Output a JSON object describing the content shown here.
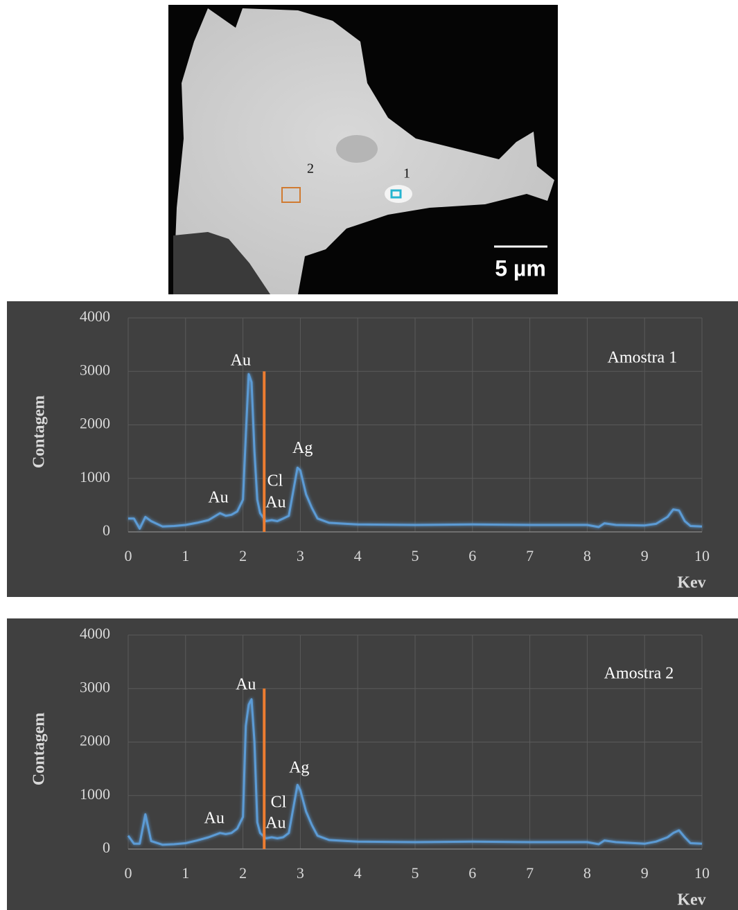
{
  "image": {
    "labels": [
      "2",
      "1"
    ],
    "scale_bar": "5 µm"
  },
  "chart_data": [
    {
      "type": "line",
      "color": "#5b9bd5",
      "x": [
        0,
        0.1,
        0.2,
        0.3,
        0.4,
        0.6,
        0.8,
        1.0,
        1.2,
        1.4,
        1.6,
        1.7,
        1.8,
        1.9,
        2.0,
        2.05,
        2.1,
        2.15,
        2.2,
        2.25,
        2.3,
        2.4,
        2.5,
        2.6,
        2.7,
        2.8,
        2.9,
        2.95,
        3.0,
        3.1,
        3.2,
        3.3,
        3.5,
        3.8,
        4,
        5,
        6,
        7,
        8,
        8.2,
        8.3,
        8.5,
        9,
        9.2,
        9.4,
        9.5,
        9.6,
        9.7,
        9.8,
        10
      ],
      "values": [
        250,
        250,
        60,
        280,
        200,
        100,
        110,
        130,
        170,
        220,
        350,
        300,
        320,
        380,
        600,
        1800,
        2950,
        2800,
        1500,
        600,
        350,
        200,
        220,
        200,
        250,
        300,
        900,
        1200,
        1150,
        700,
        450,
        250,
        170,
        150,
        140,
        130,
        140,
        130,
        130,
        90,
        160,
        130,
        120,
        150,
        280,
        420,
        400,
        200,
        110,
        100
      ],
      "xlim": [
        0,
        10
      ],
      "xticks": [
        0,
        1,
        2,
        3,
        4,
        5,
        6,
        7,
        8,
        9,
        10
      ],
      "ylim": [
        0,
        4000
      ],
      "yticks": [
        0,
        1000,
        2000,
        3000,
        4000
      ],
      "grid": true,
      "x_label": "Kev",
      "y_label": "Contagem",
      "vline": {
        "x": 2.37,
        "y": [
          0,
          3000
        ],
        "color": "#ed7d31"
      },
      "annotations": [
        {
          "text": "Au",
          "x": 1.96,
          "y": 3185
        },
        {
          "text": "Ag",
          "x": 3.04,
          "y": 1550
        },
        {
          "text": "Cl",
          "x": 2.56,
          "y": 930
        },
        {
          "text": "Au",
          "x": 2.57,
          "y": 530
        },
        {
          "text": "Au",
          "x": 1.57,
          "y": 620
        },
        {
          "text": "Amostra 1",
          "x": 8.96,
          "y": 3235
        }
      ]
    },
    {
      "type": "line",
      "color": "#5b9bd5",
      "x": [
        0,
        0.1,
        0.2,
        0.3,
        0.4,
        0.6,
        0.8,
        1.0,
        1.2,
        1.4,
        1.6,
        1.7,
        1.8,
        1.9,
        2.0,
        2.05,
        2.1,
        2.15,
        2.2,
        2.25,
        2.3,
        2.4,
        2.5,
        2.6,
        2.7,
        2.8,
        2.9,
        2.95,
        3.0,
        3.1,
        3.2,
        3.3,
        3.5,
        3.8,
        4,
        5,
        6,
        7,
        8,
        8.2,
        8.3,
        8.5,
        9,
        9.2,
        9.4,
        9.5,
        9.6,
        9.7,
        9.8,
        10
      ],
      "values": [
        250,
        100,
        100,
        650,
        150,
        80,
        90,
        110,
        160,
        220,
        300,
        280,
        300,
        380,
        600,
        2300,
        2700,
        2800,
        2000,
        500,
        300,
        200,
        220,
        200,
        220,
        300,
        900,
        1200,
        1100,
        700,
        450,
        250,
        170,
        150,
        140,
        130,
        140,
        130,
        130,
        90,
        160,
        130,
        100,
        140,
        220,
        300,
        350,
        220,
        110,
        100
      ],
      "xlim": [
        0,
        10
      ],
      "xticks": [
        0,
        1,
        2,
        3,
        4,
        5,
        6,
        7,
        8,
        9,
        10
      ],
      "ylim": [
        0,
        4000
      ],
      "yticks": [
        0,
        1000,
        2000,
        3000,
        4000
      ],
      "grid": true,
      "x_label": "Kev",
      "y_label": "Contagem",
      "vline": {
        "x": 2.37,
        "y": [
          0,
          3000
        ],
        "color": "#ed7d31"
      },
      "annotations": [
        {
          "text": "Au",
          "x": 2.05,
          "y": 3055
        },
        {
          "text": "Ag",
          "x": 2.98,
          "y": 1500
        },
        {
          "text": "Cl",
          "x": 2.62,
          "y": 855
        },
        {
          "text": "Au",
          "x": 2.57,
          "y": 465
        },
        {
          "text": "Au",
          "x": 1.5,
          "y": 555
        },
        {
          "text": "Amostra 2",
          "x": 8.9,
          "y": 3260
        }
      ]
    }
  ]
}
